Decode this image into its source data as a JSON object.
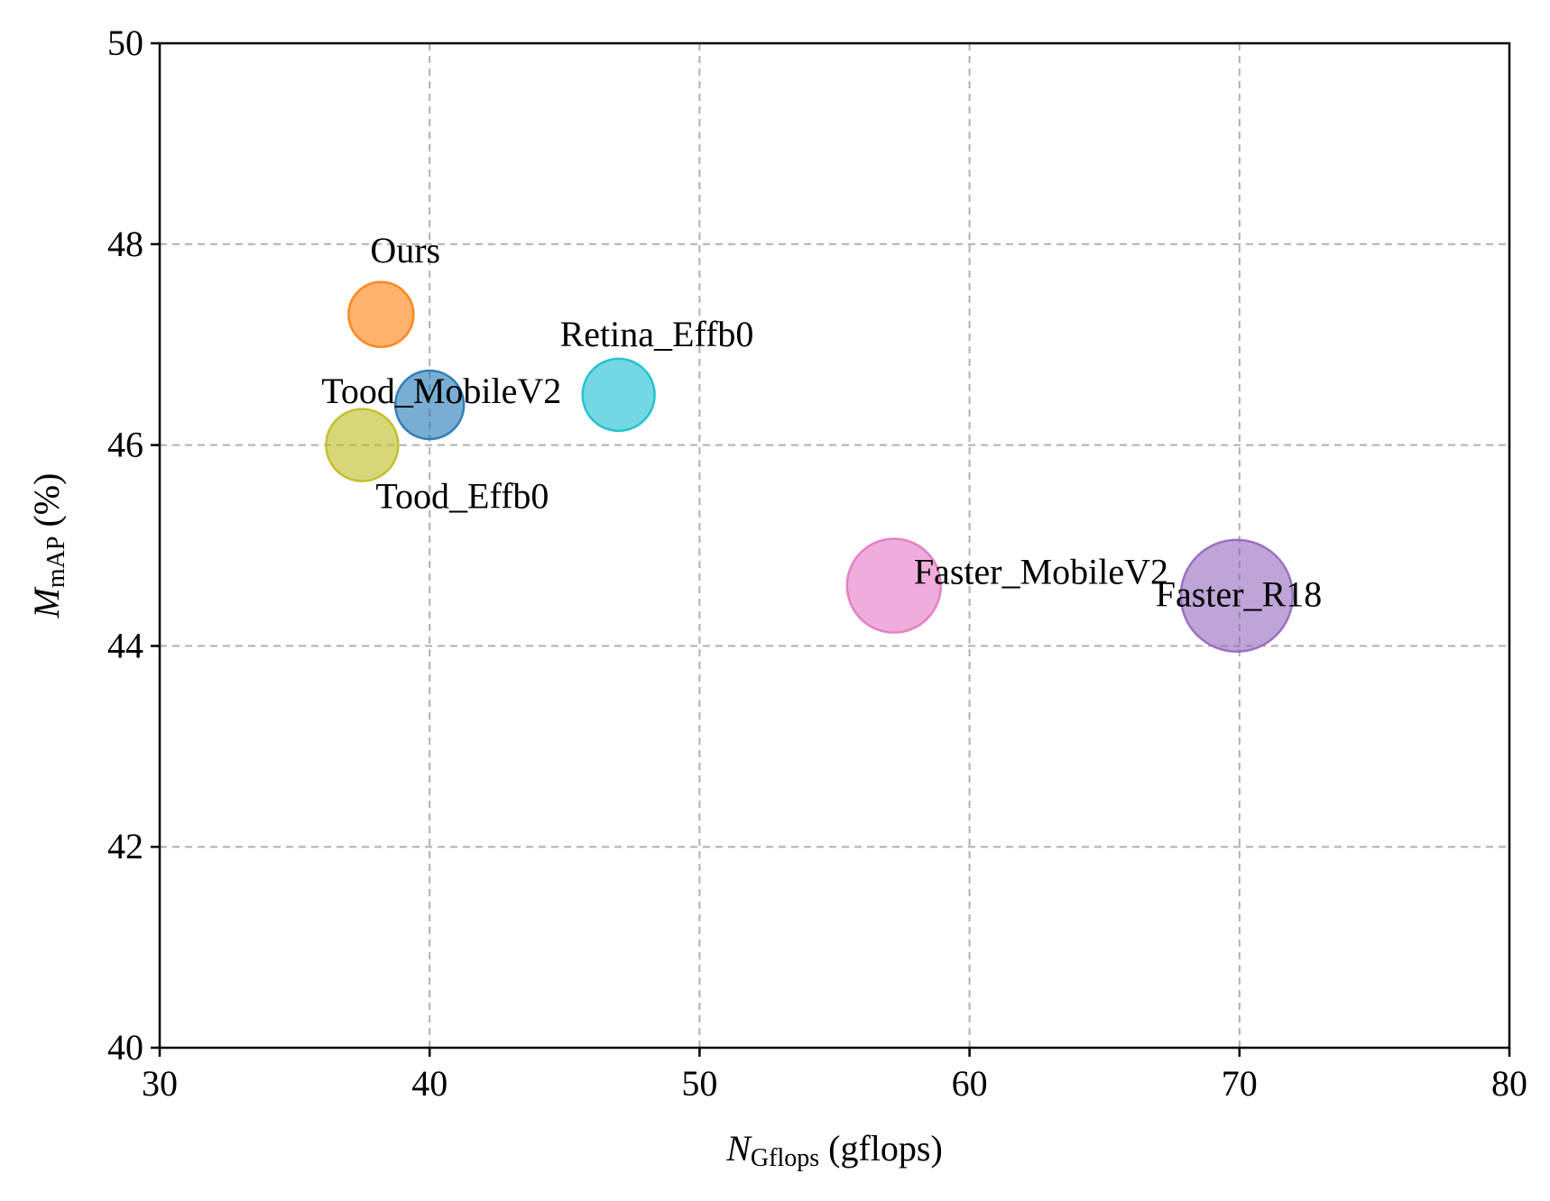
{
  "chart_data": {
    "type": "scatter",
    "xlabel": {
      "main": "N",
      "sub": "Gflops",
      "rest": " (gflops)"
    },
    "ylabel": {
      "main": "M",
      "sub": "mAP",
      "rest": " (%)"
    },
    "xlim": [
      30,
      80
    ],
    "ylim": [
      40,
      50
    ],
    "xticks": [
      "30",
      "40",
      "50",
      "60",
      "70",
      "80"
    ],
    "yticks": [
      "40",
      "42",
      "44",
      "46",
      "48",
      "50"
    ],
    "grid": true,
    "points": [
      {
        "label": "Ours",
        "x": 38.2,
        "y": 47.3,
        "size": 0.36,
        "color": "#ff7f0e"
      },
      {
        "label": "Tood_MobileV2",
        "x": 40.0,
        "y": 46.4,
        "size": 0.38,
        "color": "#1f77b4"
      },
      {
        "label": "Tood_Effb0",
        "x": 37.5,
        "y": 46.0,
        "size": 0.4,
        "color": "#bcbd22"
      },
      {
        "label": "Retina_Effb0",
        "x": 47.0,
        "y": 46.5,
        "size": 0.4,
        "color": "#17becf"
      },
      {
        "label": "Faster_MobileV2",
        "x": 57.2,
        "y": 44.6,
        "size": 0.52,
        "color": "#e377c2"
      },
      {
        "label": "Faster_R18",
        "x": 69.9,
        "y": 44.5,
        "size": 0.62,
        "color": "#9467bd"
      }
    ]
  }
}
